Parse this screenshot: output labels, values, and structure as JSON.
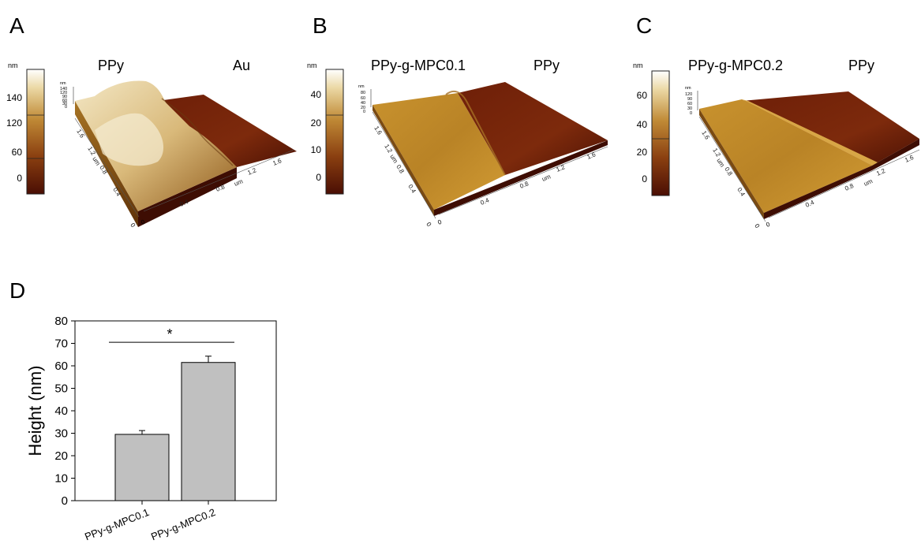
{
  "panels": [
    {
      "letter": "A",
      "scale_unit": "nm",
      "scale_ticks": [
        "140",
        "120",
        "60",
        "0"
      ],
      "label_left": "PPy",
      "label_right": "Au",
      "z_ticks": [
        "nm",
        "140",
        "120",
        "90",
        "60",
        "30",
        "0"
      ],
      "x_ticks": [
        "0.4",
        "0.8",
        "1.2",
        "1.6"
      ],
      "x_unit": "um",
      "y_ticks": [
        "0.4",
        "0.8",
        "1.2",
        "1.6"
      ],
      "y_unit": "um",
      "origin_ticks": [
        "0",
        "0"
      ],
      "colors": {
        "low": "#5a1505",
        "mid": "#b07a2a",
        "high": "#fbf6e2"
      }
    },
    {
      "letter": "B",
      "scale_unit": "nm",
      "scale_ticks": [
        "40",
        "20",
        "10",
        "0"
      ],
      "label_left": "PPy-g-MPC0.1",
      "label_right": "PPy",
      "z_ticks": [
        "nm",
        "80",
        "60",
        "40",
        "20",
        "0"
      ],
      "x_ticks": [
        "0.4",
        "0.8",
        "1.2",
        "1.6"
      ],
      "x_unit": "um",
      "y_ticks": [
        "0.4",
        "0.8",
        "1.2",
        "1.6"
      ],
      "y_unit": "um",
      "origin_ticks": [
        "0",
        "0"
      ],
      "colors": {
        "low": "#5a1505",
        "mid": "#b07a2a",
        "high": "#fbf6e2"
      }
    },
    {
      "letter": "C",
      "scale_unit": "nm",
      "scale_ticks": [
        "60",
        "40",
        "20",
        "0"
      ],
      "label_left": "PPy-g-MPC0.2",
      "label_right": "PPy",
      "z_ticks": [
        "nm",
        "120",
        "90",
        "60",
        "30",
        "0"
      ],
      "x_ticks": [
        "0.4",
        "0.8",
        "1.2",
        "1.6"
      ],
      "x_unit": "um",
      "y_ticks": [
        "0.4",
        "0.8",
        "1.2",
        "1.6"
      ],
      "y_unit": "um",
      "origin_ticks": [
        "0",
        "0"
      ],
      "colors": {
        "low": "#5a1505",
        "mid": "#b07a2a",
        "high": "#fbf6e2"
      }
    }
  ],
  "chart_data": {
    "type": "bar",
    "panel_letter": "D",
    "categories": [
      "PPy-g-MPC0.1",
      "PPy-g-MPC0.2"
    ],
    "values": [
      29.5,
      61.5
    ],
    "errors": [
      1.7,
      2.8
    ],
    "ylabel": "Height (nm)",
    "ylim": [
      0,
      80
    ],
    "yticks": [
      0,
      10,
      20,
      30,
      40,
      50,
      60,
      70,
      80
    ],
    "significance": "*",
    "bar_color": "#c0c0c0",
    "grid": false
  }
}
